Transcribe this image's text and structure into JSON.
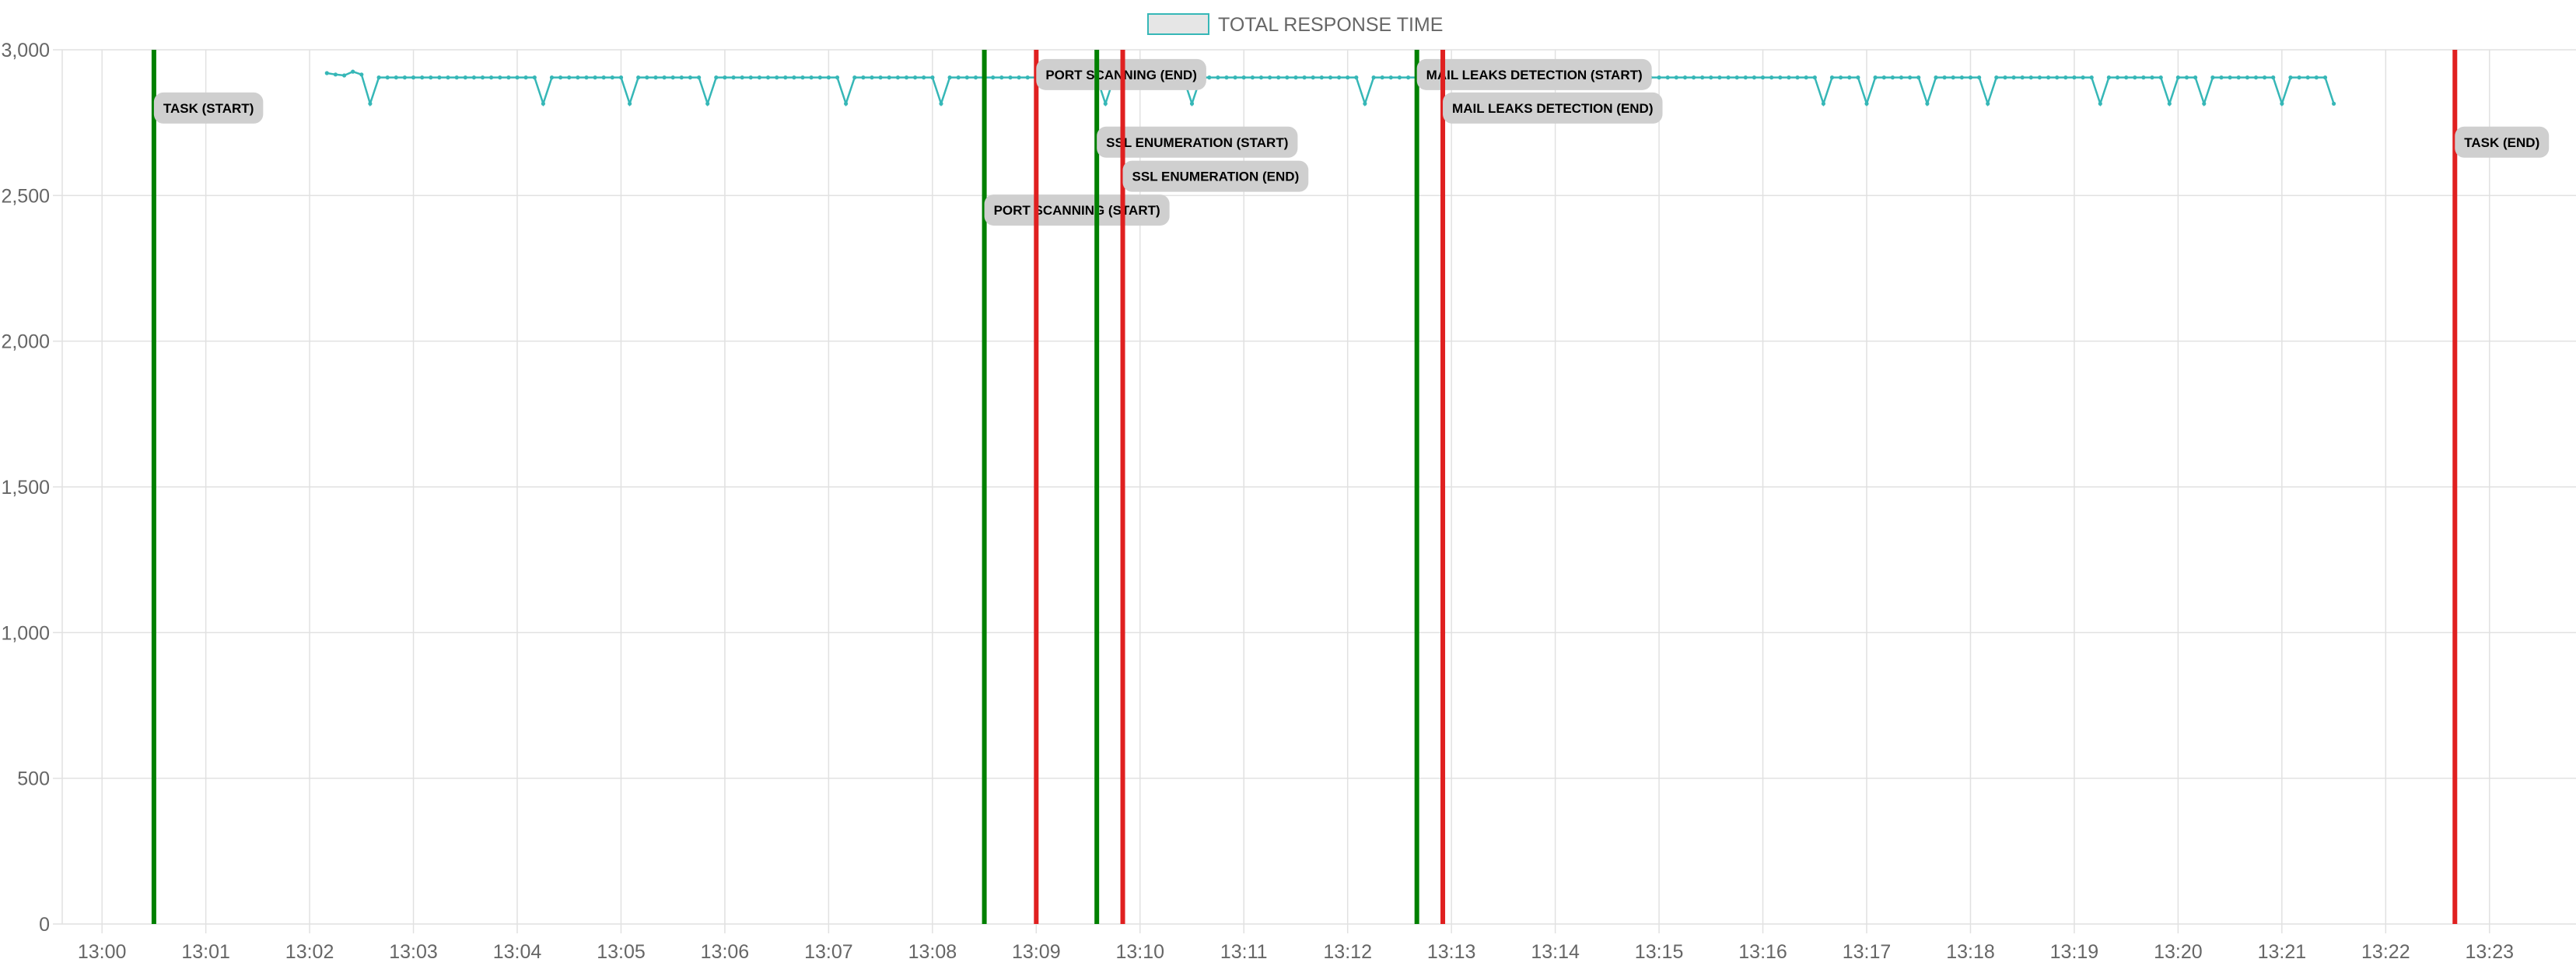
{
  "chart_data": {
    "type": "line",
    "legend": {
      "label": "TOTAL RESPONSE TIME",
      "position": "top-center"
    },
    "grid": true,
    "x_axis": {
      "range": [
        "12:59:37",
        "13:23:50"
      ],
      "ticks": [
        "13:00",
        "13:01",
        "13:02",
        "13:03",
        "13:04",
        "13:05",
        "13:06",
        "13:07",
        "13:08",
        "13:09",
        "13:10",
        "13:11",
        "13:12",
        "13:13",
        "13:14",
        "13:15",
        "13:16",
        "13:17",
        "13:18",
        "13:19",
        "13:20",
        "13:21",
        "13:22",
        "13:23"
      ]
    },
    "y_axis": {
      "range": [
        0,
        3000
      ],
      "ticks": [
        {
          "value": 0,
          "label": "0"
        },
        {
          "value": 500,
          "label": "500"
        },
        {
          "value": 1000,
          "label": "1,000"
        },
        {
          "value": 1500,
          "label": "1,500"
        },
        {
          "value": 2000,
          "label": "2,000"
        },
        {
          "value": 2500,
          "label": "2,500"
        },
        {
          "value": 3000,
          "label": "3,000"
        }
      ]
    },
    "series": [
      {
        "name": "TOTAL RESPONSE TIME",
        "color": "#36b7b7",
        "start": "13:02:10",
        "end": "13:21:30",
        "baseline": 2905,
        "dip_value": 2815,
        "dips": [
          "13:02:35",
          "13:04:13",
          "13:05:03",
          "13:05:48",
          "13:07:10",
          "13:08:05",
          "13:09:40",
          "13:10:30",
          "13:12:08",
          "13:16:33",
          "13:17:00",
          "13:17:33",
          "13:18:12",
          "13:19:15",
          "13:19:55",
          "13:20:15",
          "13:21:00",
          "13:21:30"
        ],
        "start_points": [
          {
            "x": "13:02:10",
            "y": 2920
          },
          {
            "x": "13:02:15",
            "y": 2915
          },
          {
            "x": "13:02:20",
            "y": 2912
          },
          {
            "x": "13:02:25",
            "y": 2925
          },
          {
            "x": "13:02:30",
            "y": 2915
          }
        ]
      }
    ],
    "annotations": [
      {
        "label": "TASK (START)",
        "x": "13:00:30",
        "color": "#008000",
        "label_y": 2800
      },
      {
        "label": "PORT SCANNING (START)",
        "x": "13:08:30",
        "color": "#008000",
        "label_y": 2450
      },
      {
        "label": "PORT SCANNING (END)",
        "x": "13:09:00",
        "color": "#e02020",
        "label_y": 2915
      },
      {
        "label": "SSL ENUMERATION (START)",
        "x": "13:09:35",
        "color": "#008000",
        "label_y": 2683
      },
      {
        "label": "SSL ENUMERATION (END)",
        "x": "13:09:50",
        "color": "#e02020",
        "label_y": 2566
      },
      {
        "label": "MAIL LEAKS DETECTION (START)",
        "x": "13:12:40",
        "color": "#008000",
        "label_y": 2915
      },
      {
        "label": "MAIL LEAKS DETECTION (END)",
        "x": "13:12:55",
        "color": "#e02020",
        "label_y": 2800
      },
      {
        "label": "TASK (END)",
        "x": "13:22:40",
        "color": "#e02020",
        "label_y": 2683
      }
    ]
  }
}
